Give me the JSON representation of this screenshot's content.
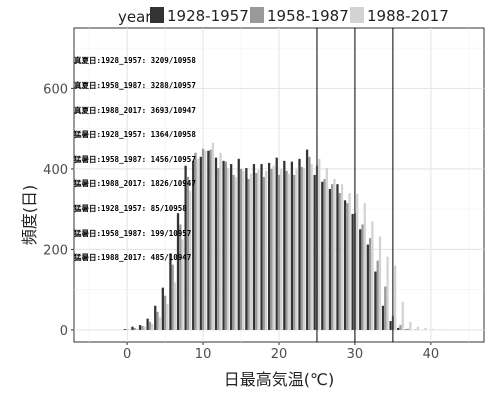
{
  "legend": {
    "title": "year",
    "items": [
      {
        "label": "1928-1957",
        "color": "#333333"
      },
      {
        "label": "1958-1987",
        "color": "#999999"
      },
      {
        "label": "1988-2017",
        "color": "#d3d3d3"
      }
    ]
  },
  "annotations": [
    "真夏日:1928_1957: 3209/10958",
    "真夏日:1958_1987: 3288/10957",
    "真夏日:1988_2017: 3693/10947",
    "猛暑日:1928_1957: 1364/10958",
    "猛暑日:1958_1987: 1456/10957",
    "猛暑日:1988_2017: 1826/10947",
    "猛暑日:1928_1957: 85/10958",
    "猛暑日:1958_1987: 199/10957",
    "猛暑日:1988_2017: 485/10947"
  ],
  "chart_data": {
    "type": "bar",
    "xlabel": "日最高気温(℃)",
    "ylabel": "頻度(日)",
    "xlim": [
      -7,
      47
    ],
    "ylim": [
      -30,
      750
    ],
    "xticks": [
      0,
      10,
      20,
      30,
      40
    ],
    "yticks": [
      0,
      200,
      400,
      600
    ],
    "grid": true,
    "legend_position": "top",
    "vlines": [
      25,
      30,
      35
    ],
    "x": [
      -1,
      0,
      1,
      2,
      3,
      4,
      5,
      6,
      7,
      8,
      9,
      10,
      11,
      12,
      13,
      14,
      15,
      16,
      17,
      18,
      19,
      20,
      21,
      22,
      23,
      24,
      25,
      26,
      27,
      28,
      29,
      30,
      31,
      32,
      33,
      34,
      35,
      36,
      37,
      38,
      39,
      40,
      41,
      42,
      43,
      44
    ],
    "series": [
      {
        "name": "1928-1957",
        "color": "#333333",
        "values": [
          0,
          2,
          8,
          12,
          28,
          60,
          105,
          190,
          290,
          408,
          420,
          430,
          445,
          428,
          420,
          412,
          425,
          402,
          412,
          412,
          415,
          428,
          420,
          418,
          425,
          448,
          385,
          368,
          350,
          362,
          322,
          288,
          250,
          212,
          145,
          60,
          22,
          5,
          1,
          0,
          0,
          0,
          0,
          0,
          0,
          0
        ]
      },
      {
        "name": "1958-1987",
        "color": "#999999",
        "values": [
          0,
          1,
          5,
          10,
          20,
          45,
          85,
          162,
          262,
          380,
          440,
          450,
          448,
          402,
          418,
          385,
          400,
          375,
          390,
          380,
          400,
          385,
          395,
          385,
          405,
          430,
          408,
          375,
          362,
          340,
          315,
          290,
          262,
          228,
          172,
          108,
          35,
          12,
          3,
          1,
          0,
          0,
          0,
          0,
          0,
          0
        ]
      },
      {
        "name": "1988-2017",
        "color": "#d3d3d3",
        "values": [
          0,
          0,
          3,
          8,
          15,
          32,
          65,
          118,
          225,
          345,
          425,
          445,
          465,
          440,
          402,
          380,
          395,
          388,
          398,
          395,
          408,
          400,
          388,
          400,
          402,
          412,
          425,
          402,
          375,
          362,
          340,
          338,
          315,
          270,
          232,
          182,
          160,
          70,
          20,
          8,
          5,
          2,
          1,
          1,
          0,
          0
        ]
      }
    ]
  }
}
